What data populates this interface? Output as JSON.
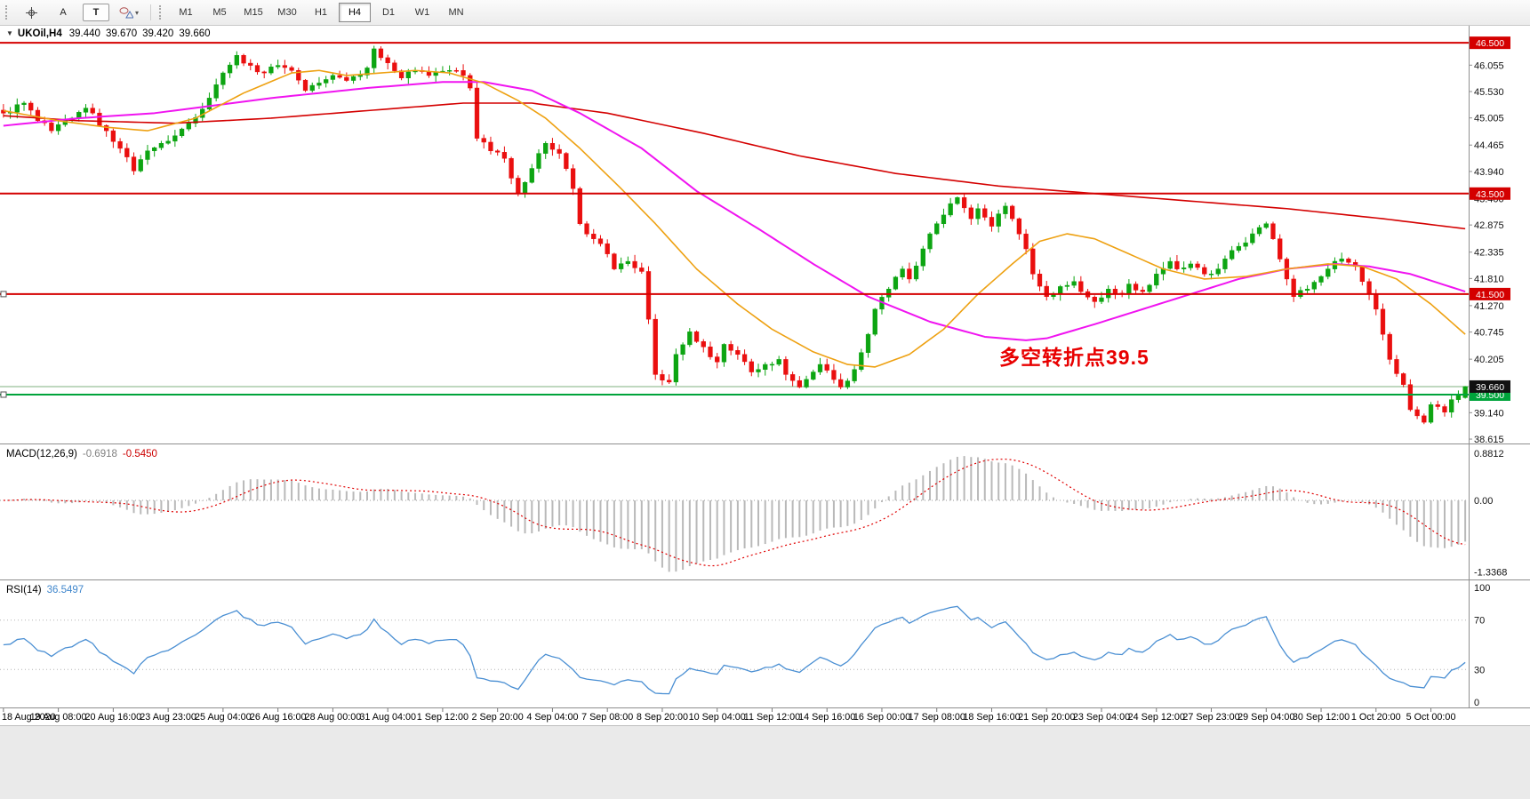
{
  "toolbar": {
    "label_tool": "A",
    "text_tool": "T",
    "timeframes": [
      "M1",
      "M5",
      "M15",
      "M30",
      "H1",
      "H4",
      "D1",
      "W1",
      "MN"
    ],
    "active_timeframe": "H4"
  },
  "info_line": {
    "expander": "▼",
    "symbol": "UKOil,H4",
    "open": "39.440",
    "high": "39.670",
    "low": "39.420",
    "close": "39.660"
  },
  "annotation": {
    "text": "多空转折点39.5",
    "color": "#e80000"
  },
  "indicators": {
    "macd": {
      "label": "MACD(12,26,9)",
      "value": "-0.6918",
      "signal": "-0.5450",
      "scale_top": "0.8812",
      "scale_zero": "0.00",
      "scale_bottom": "-1.3368"
    },
    "rsi": {
      "label": "RSI(14)",
      "value": "36.5497",
      "levels": [
        70,
        30
      ],
      "scale": [
        "100",
        "70",
        "30",
        "0"
      ]
    }
  },
  "colors": {
    "up": "#0da512",
    "down": "#ea0f0f",
    "bid_line": "#7fb07f",
    "macd_hist": "#b9b9b9",
    "macd_signal": "#e00000",
    "rsi": "#4a8fd3"
  },
  "chart_data": {
    "type": "candlestick",
    "symbol": "UKOil",
    "timeframe": "H4",
    "bars": 214,
    "last_candle": {
      "open": 39.44,
      "high": 39.67,
      "low": 39.42,
      "close": 39.66
    },
    "bid": {
      "price": 39.66,
      "label": "39.660"
    },
    "horizontal_lines": [
      {
        "price": 46.5,
        "label": "46.500",
        "color": "#d40000",
        "handle": false
      },
      {
        "price": 43.5,
        "label": "43.500",
        "color": "#d40000",
        "handle": false
      },
      {
        "price": 41.5,
        "label": "41.500",
        "color": "#d40000",
        "handle": true
      },
      {
        "price": 39.5,
        "label": "39.500",
        "color": "#00a43b",
        "handle": true
      }
    ],
    "y_ticks": [
      "46.055",
      "45.530",
      "45.005",
      "44.465",
      "43.940",
      "43.400",
      "42.875",
      "42.335",
      "41.810",
      "41.270",
      "40.745",
      "40.205",
      "39.140",
      "38.615"
    ],
    "x_label_step": 8,
    "x_labels": [
      "18 Aug 2020",
      "19 Aug 08:00",
      "20 Aug 16:00",
      "23 Aug 23:00",
      "25 Aug 04:00",
      "26 Aug 16:00",
      "28 Aug 00:00",
      "31 Aug 04:00",
      "1 Sep 12:00",
      "2 Sep 20:00",
      "4 Sep 04:00",
      "7 Sep 08:00",
      "8 Sep 20:00",
      "10 Sep 04:00",
      "11 Sep 12:00",
      "14 Sep 16:00",
      "16 Sep 00:00",
      "17 Sep 08:00",
      "18 Sep 16:00",
      "21 Sep 20:00",
      "23 Sep 04:00",
      "24 Sep 12:00",
      "27 Sep 23:00",
      "29 Sep 04:00",
      "30 Sep 12:00",
      "1 Oct 20:00",
      "5 Oct 00:00"
    ],
    "price_keypoints": [
      [
        0,
        45.1
      ],
      [
        3,
        45.3
      ],
      [
        5,
        44.95
      ],
      [
        7,
        44.75
      ],
      [
        10,
        45.0
      ],
      [
        12,
        45.2
      ],
      [
        15,
        44.75
      ],
      [
        17,
        44.4
      ],
      [
        19,
        43.95
      ],
      [
        21,
        44.35
      ],
      [
        23,
        44.5
      ],
      [
        25,
        44.65
      ],
      [
        27,
        44.9
      ],
      [
        30,
        45.4
      ],
      [
        32,
        45.9
      ],
      [
        34,
        46.25
      ],
      [
        36,
        46.05
      ],
      [
        38,
        45.9
      ],
      [
        40,
        46.05
      ],
      [
        42,
        45.95
      ],
      [
        44,
        45.55
      ],
      [
        46,
        45.7
      ],
      [
        48,
        45.85
      ],
      [
        50,
        45.75
      ],
      [
        53,
        46.0
      ],
      [
        54,
        46.38
      ],
      [
        56,
        46.1
      ],
      [
        58,
        45.8
      ],
      [
        60,
        45.95
      ],
      [
        62,
        45.85
      ],
      [
        65,
        45.95
      ],
      [
        67,
        45.85
      ],
      [
        68,
        45.6
      ],
      [
        69,
        44.6
      ],
      [
        71,
        44.35
      ],
      [
        73,
        44.2
      ],
      [
        75,
        43.5
      ],
      [
        77,
        44.0
      ],
      [
        79,
        44.5
      ],
      [
        81,
        44.3
      ],
      [
        83,
        43.6
      ],
      [
        84,
        42.9
      ],
      [
        86,
        42.6
      ],
      [
        88,
        42.3
      ],
      [
        89,
        42.0
      ],
      [
        91,
        42.15
      ],
      [
        93,
        41.95
      ],
      [
        94,
        41.0
      ],
      [
        95,
        39.9
      ],
      [
        97,
        39.75
      ],
      [
        98,
        40.3
      ],
      [
        100,
        40.75
      ],
      [
        102,
        40.45
      ],
      [
        104,
        40.15
      ],
      [
        105,
        40.5
      ],
      [
        107,
        40.3
      ],
      [
        109,
        39.95
      ],
      [
        111,
        40.1
      ],
      [
        113,
        40.2
      ],
      [
        114,
        39.9
      ],
      [
        116,
        39.65
      ],
      [
        118,
        39.95
      ],
      [
        119,
        40.1
      ],
      [
        121,
        39.8
      ],
      [
        122,
        39.65
      ],
      [
        124,
        40.0
      ],
      [
        126,
        40.7
      ],
      [
        127,
        41.2
      ],
      [
        129,
        41.6
      ],
      [
        131,
        42.0
      ],
      [
        132,
        41.8
      ],
      [
        134,
        42.4
      ],
      [
        136,
        42.9
      ],
      [
        138,
        43.3
      ],
      [
        139,
        43.42
      ],
      [
        141,
        43.0
      ],
      [
        142,
        43.2
      ],
      [
        144,
        42.85
      ],
      [
        146,
        43.25
      ],
      [
        147,
        43.0
      ],
      [
        149,
        42.4
      ],
      [
        150,
        41.9
      ],
      [
        152,
        41.45
      ],
      [
        154,
        41.65
      ],
      [
        156,
        41.75
      ],
      [
        157,
        41.55
      ],
      [
        159,
        41.35
      ],
      [
        161,
        41.6
      ],
      [
        163,
        41.5
      ],
      [
        164,
        41.7
      ],
      [
        166,
        41.55
      ],
      [
        168,
        41.9
      ],
      [
        170,
        42.15
      ],
      [
        171,
        42.0
      ],
      [
        173,
        42.1
      ],
      [
        175,
        41.9
      ],
      [
        177,
        42.0
      ],
      [
        178,
        42.2
      ],
      [
        180,
        42.45
      ],
      [
        182,
        42.7
      ],
      [
        184,
        42.9
      ],
      [
        185,
        42.6
      ],
      [
        187,
        41.8
      ],
      [
        188,
        41.45
      ],
      [
        190,
        41.6
      ],
      [
        192,
        41.85
      ],
      [
        193,
        42.0
      ],
      [
        195,
        42.2
      ],
      [
        197,
        42.05
      ],
      [
        198,
        41.75
      ],
      [
        200,
        41.2
      ],
      [
        201,
        40.7
      ],
      [
        202,
        40.2
      ],
      [
        204,
        39.7
      ],
      [
        205,
        39.2
      ],
      [
        207,
        38.95
      ],
      [
        208,
        39.3
      ],
      [
        210,
        39.15
      ],
      [
        211,
        39.4
      ],
      [
        213,
        39.66
      ]
    ],
    "moving_averages": [
      {
        "name": "ma-slow",
        "color": "#d40000",
        "width": 1.6,
        "points": [
          [
            0,
            45.05
          ],
          [
            11,
            44.95
          ],
          [
            25,
            44.9
          ],
          [
            39,
            45.0
          ],
          [
            53,
            45.15
          ],
          [
            67,
            45.3
          ],
          [
            77,
            45.3
          ],
          [
            88,
            45.1
          ],
          [
            102,
            44.7
          ],
          [
            116,
            44.25
          ],
          [
            130,
            43.9
          ],
          [
            145,
            43.65
          ],
          [
            159,
            43.5
          ],
          [
            173,
            43.35
          ],
          [
            187,
            43.2
          ],
          [
            201,
            43.0
          ],
          [
            213,
            42.8
          ]
        ]
      },
      {
        "name": "ma-mid",
        "color": "#f014f0",
        "width": 2,
        "points": [
          [
            0,
            44.85
          ],
          [
            11,
            45.0
          ],
          [
            22,
            45.1
          ],
          [
            39,
            45.4
          ],
          [
            53,
            45.6
          ],
          [
            64,
            45.72
          ],
          [
            70,
            45.72
          ],
          [
            77,
            45.55
          ],
          [
            84,
            45.1
          ],
          [
            93,
            44.4
          ],
          [
            101,
            43.55
          ],
          [
            110,
            42.8
          ],
          [
            118,
            42.1
          ],
          [
            126,
            41.45
          ],
          [
            135,
            40.95
          ],
          [
            143,
            40.65
          ],
          [
            149,
            40.58
          ],
          [
            152,
            40.62
          ],
          [
            159,
            40.9
          ],
          [
            166,
            41.2
          ],
          [
            173,
            41.5
          ],
          [
            180,
            41.8
          ],
          [
            187,
            42.0
          ],
          [
            194,
            42.1
          ],
          [
            199,
            42.05
          ],
          [
            205,
            41.9
          ],
          [
            213,
            41.55
          ]
        ]
      },
      {
        "name": "ma-fast",
        "color": "#eea112",
        "width": 1.6,
        "points": [
          [
            0,
            45.15
          ],
          [
            8,
            44.95
          ],
          [
            15,
            44.82
          ],
          [
            21,
            44.75
          ],
          [
            28,
            45.0
          ],
          [
            35,
            45.5
          ],
          [
            42,
            45.9
          ],
          [
            46,
            45.95
          ],
          [
            50,
            45.85
          ],
          [
            55,
            45.9
          ],
          [
            60,
            45.95
          ],
          [
            65,
            45.9
          ],
          [
            70,
            45.7
          ],
          [
            75,
            45.35
          ],
          [
            79,
            45.0
          ],
          [
            84,
            44.4
          ],
          [
            90,
            43.6
          ],
          [
            95,
            42.9
          ],
          [
            101,
            42.0
          ],
          [
            107,
            41.3
          ],
          [
            112,
            40.8
          ],
          [
            118,
            40.35
          ],
          [
            123,
            40.1
          ],
          [
            127,
            40.05
          ],
          [
            132,
            40.3
          ],
          [
            137,
            40.8
          ],
          [
            142,
            41.5
          ],
          [
            147,
            42.1
          ],
          [
            151,
            42.55
          ],
          [
            155,
            42.7
          ],
          [
            159,
            42.6
          ],
          [
            164,
            42.3
          ],
          [
            169,
            42.0
          ],
          [
            175,
            41.8
          ],
          [
            181,
            41.85
          ],
          [
            187,
            42.0
          ],
          [
            193,
            42.1
          ],
          [
            198,
            42.05
          ],
          [
            203,
            41.8
          ],
          [
            208,
            41.3
          ],
          [
            213,
            40.7
          ]
        ]
      }
    ]
  }
}
